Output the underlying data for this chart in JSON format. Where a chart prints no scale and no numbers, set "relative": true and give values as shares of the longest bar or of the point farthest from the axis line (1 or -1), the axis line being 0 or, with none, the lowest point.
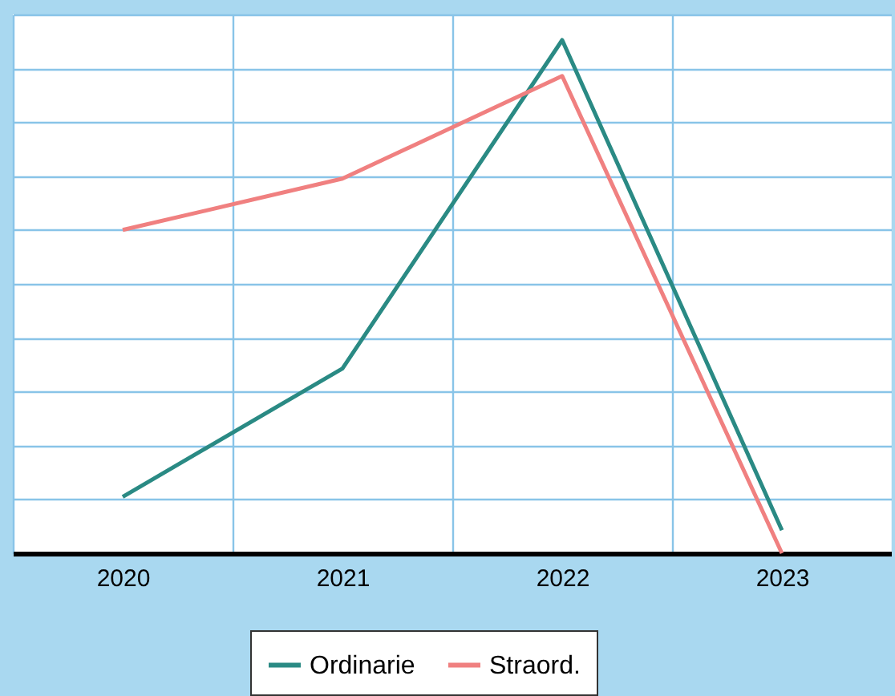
{
  "chart_data": {
    "type": "line",
    "relative": true,
    "categories": [
      "2020",
      "2021",
      "2022",
      "2023"
    ],
    "series": [
      {
        "name": "Ordinarie",
        "color": "#2a8a84",
        "values": [
          0.11,
          0.36,
          1,
          0.045
        ]
      },
      {
        "name": "Straord.",
        "color": "#f08080",
        "values": [
          0.63,
          0.73,
          0.93,
          0
        ]
      }
    ],
    "grid": true,
    "legend": "bottom",
    "marker": "none",
    "line_style": "solid"
  }
}
